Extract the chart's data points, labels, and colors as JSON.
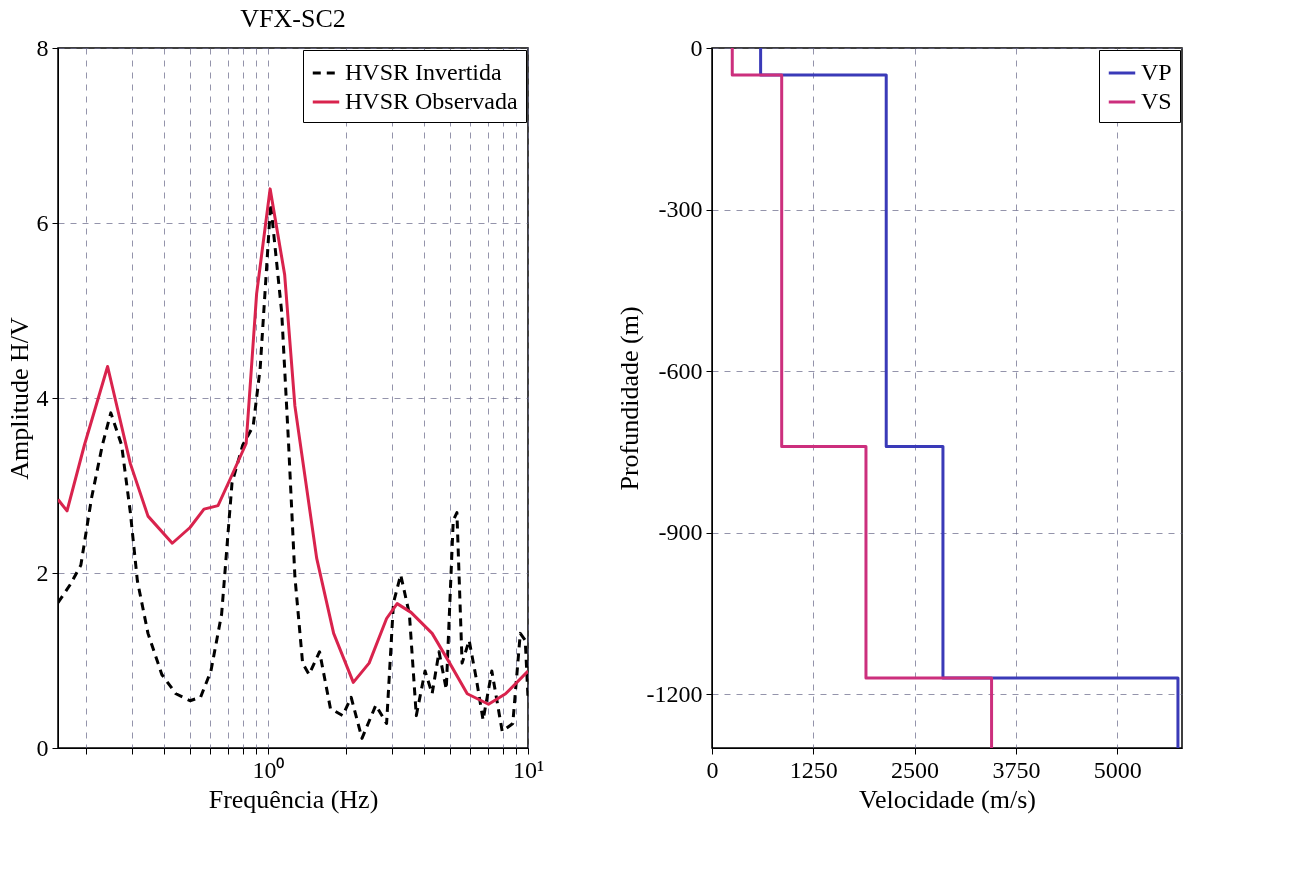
{
  "chart_data": [
    {
      "type": "line",
      "title": "VFX-SC2",
      "xlabel": "Frequência (Hz)",
      "ylabel": "Amplitude H/V",
      "log": "x",
      "grid": true,
      "legend": "top right",
      "xlim": [
        0.156,
        10
      ],
      "ylim": [
        0,
        8
      ],
      "xticks": [
        {
          "value": 0.2,
          "label": null
        },
        {
          "value": 0.3,
          "label": null
        },
        {
          "value": 0.4,
          "label": null
        },
        {
          "value": 0.5,
          "label": null
        },
        {
          "value": 0.6,
          "label": null
        },
        {
          "value": 0.7,
          "label": null
        },
        {
          "value": 0.8,
          "label": null
        },
        {
          "value": 0.9,
          "label": null
        },
        {
          "value": 1,
          "label": "10⁰"
        },
        {
          "value": 2,
          "label": null
        },
        {
          "value": 3,
          "label": null
        },
        {
          "value": 4,
          "label": null
        },
        {
          "value": 5,
          "label": null
        },
        {
          "value": 6,
          "label": null
        },
        {
          "value": 7,
          "label": null
        },
        {
          "value": 8,
          "label": null
        },
        {
          "value": 9,
          "label": null
        },
        {
          "value": 10,
          "label": "10¹"
        }
      ],
      "yticks": [
        0,
        2,
        4,
        6,
        8
      ],
      "series": [
        {
          "name": "HVSR Invertida",
          "color": "#000000",
          "line_style": "dashed",
          "x": [
            0.156,
            0.174,
            0.191,
            0.21,
            0.231,
            0.249,
            0.274,
            0.296,
            0.315,
            0.346,
            0.391,
            0.443,
            0.502,
            0.551,
            0.604,
            0.664,
            0.728,
            0.8,
            0.878,
            0.934,
            1.025,
            1.13,
            1.2,
            1.27,
            1.36,
            1.44,
            1.58,
            1.74,
            1.94,
            2.09,
            2.3,
            2.6,
            2.86,
            3.04,
            3.24,
            3.5,
            3.72,
            4.02,
            4.28,
            4.55,
            4.85,
            5.16,
            5.33,
            5.58,
            5.94,
            6.32,
            6.72,
            7.26,
            7.96,
            8.74,
            9.34,
            9.76,
            10
          ],
          "values": [
            1.66,
            1.87,
            2.09,
            2.86,
            3.46,
            3.83,
            3.46,
            2.69,
            1.91,
            1.31,
            0.84,
            0.62,
            0.54,
            0.58,
            0.88,
            1.53,
            3.03,
            3.46,
            3.68,
            4.34,
            6.22,
            4.98,
            3.5,
            1.96,
            0.97,
            0.84,
            1.1,
            0.45,
            0.37,
            0.58,
            0.11,
            0.49,
            0.28,
            1.66,
            1.98,
            1.53,
            0.37,
            0.88,
            0.62,
            1.1,
            0.67,
            2.6,
            2.69,
            0.97,
            1.23,
            0.8,
            0.32,
            0.88,
            0.19,
            0.28,
            1.31,
            1.23,
            0.58
          ]
        },
        {
          "name": "HVSR Observada",
          "color": "#d9234d",
          "line_style": "solid",
          "x": [
            0.156,
            0.169,
            0.197,
            0.242,
            0.296,
            0.346,
            0.429,
            0.502,
            0.568,
            0.643,
            0.728,
            0.825,
            0.905,
            1.02,
            1.16,
            1.27,
            1.54,
            1.79,
            2.13,
            2.45,
            2.86,
            3.14,
            3.55,
            4.28,
            5.0,
            5.84,
            7.05,
            8.2,
            10
          ],
          "values": [
            2.84,
            2.71,
            3.46,
            4.36,
            3.25,
            2.65,
            2.34,
            2.52,
            2.73,
            2.77,
            3.12,
            3.48,
            5.19,
            6.39,
            5.41,
            3.91,
            2.17,
            1.31,
            0.75,
            0.97,
            1.48,
            1.65,
            1.55,
            1.31,
            0.97,
            0.62,
            0.5,
            0.62,
            0.88
          ]
        }
      ]
    },
    {
      "type": "line",
      "xlabel": "Velocidade (m/s)",
      "ylabel": "Profundidade (m)",
      "grid": true,
      "legend": "top right",
      "xlim": [
        0,
        5800
      ],
      "ylim": [
        -1300,
        0
      ],
      "xticks": [
        0,
        1250,
        2500,
        3750,
        5000
      ],
      "yticks": [
        -1200,
        -900,
        -600,
        -300,
        0
      ],
      "series": [
        {
          "name": "VP",
          "color": "#3a3ab8",
          "line_style": "solid",
          "x": [
            600,
            600,
            2150,
            2150,
            2850,
            2850,
            5750,
            5750
          ],
          "values": [
            0,
            -50,
            -50,
            -740,
            -740,
            -1170,
            -1170,
            -1300
          ]
        },
        {
          "name": "VS",
          "color": "#cc2f7d",
          "line_style": "solid",
          "x": [
            250,
            250,
            860,
            860,
            1900,
            1900,
            3450,
            3450
          ],
          "values": [
            0,
            -50,
            -50,
            -740,
            -740,
            -1170,
            -1170,
            -1300
          ]
        }
      ]
    }
  ]
}
